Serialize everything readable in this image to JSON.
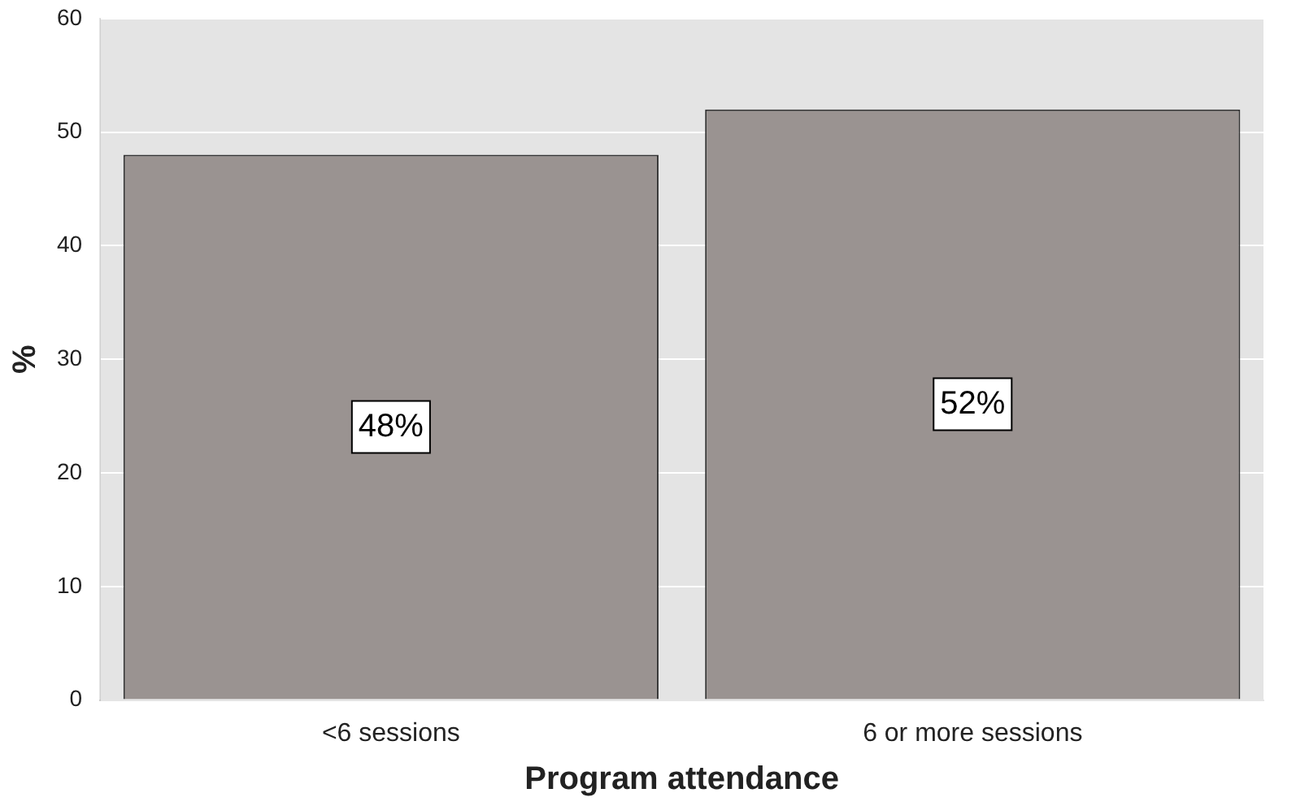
{
  "chart_data": {
    "type": "bar",
    "xlabel": "Program attendance",
    "ylabel": "%",
    "categories": [
      "<6 sessions",
      "6 or more sessions"
    ],
    "values": [
      48,
      52
    ],
    "value_labels": [
      "48%",
      "52%"
    ],
    "color": "#9a9391",
    "ylim": [
      0,
      60
    ],
    "yticks": [
      0,
      10,
      20,
      30,
      40,
      50,
      60
    ],
    "grid": "y",
    "legend": false
  }
}
